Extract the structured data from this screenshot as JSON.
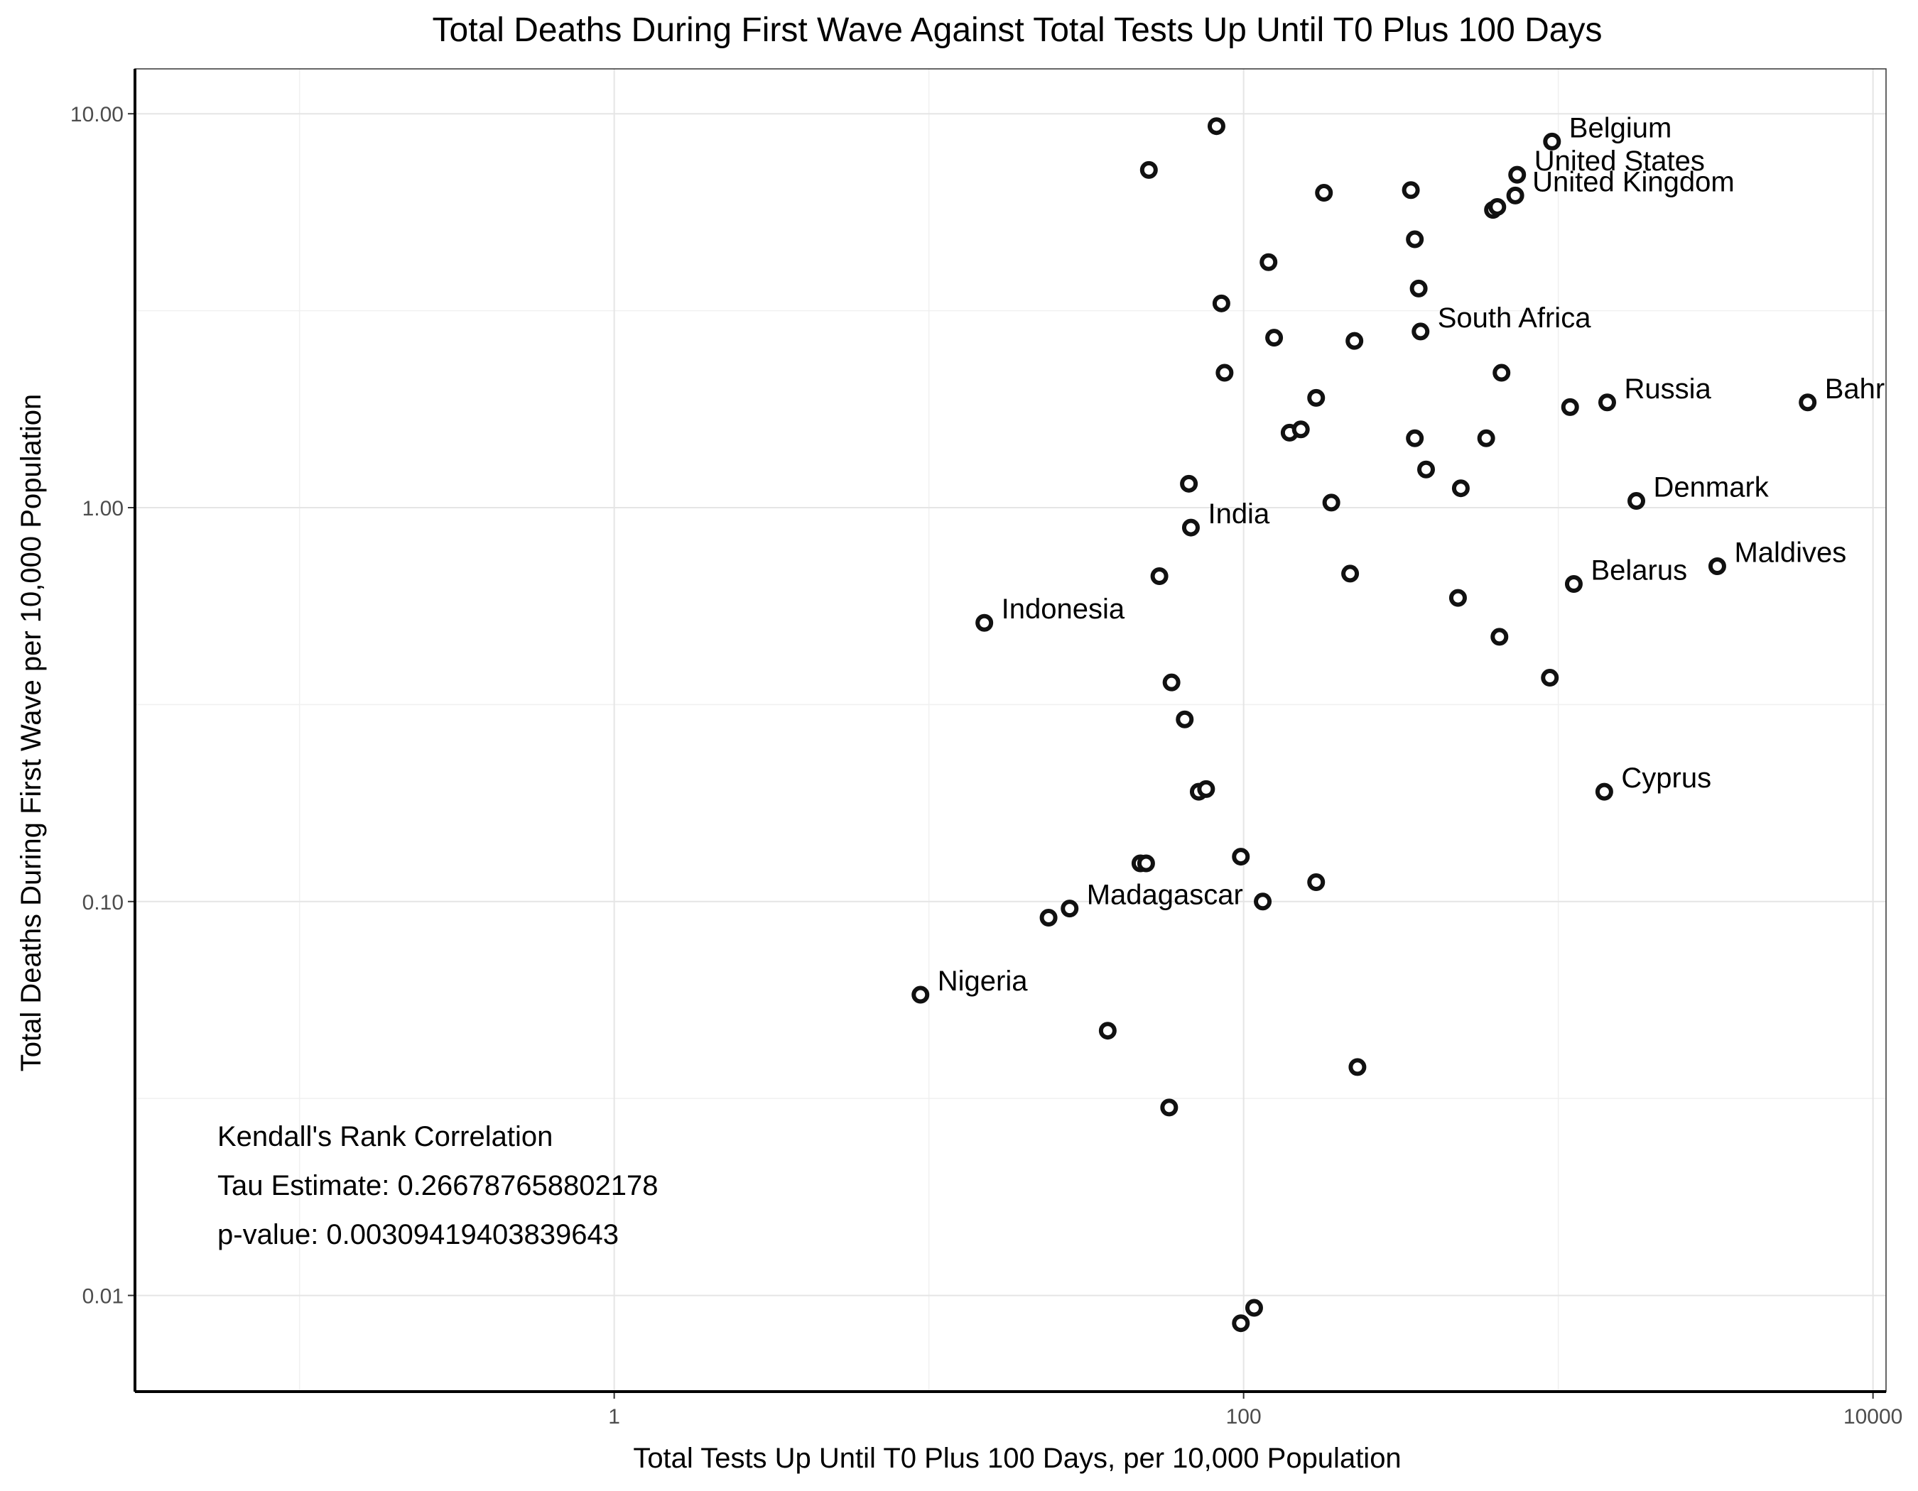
{
  "chart_data": {
    "type": "scatter",
    "title": "Total Deaths During First Wave Against Total Tests Up Until T0 Plus 100 Days",
    "xlabel": "Total Tests Up Until T0 Plus 100 Days, per 10,000 Population",
    "ylabel": "Total Deaths During First Wave per 10,000 Population",
    "x_scale": "log10",
    "y_scale": "log10",
    "xlim": [
      0.03,
      11000
    ],
    "ylim": [
      0.0057,
      13.0
    ],
    "x_ticks": [
      {
        "value": 1,
        "label": "1"
      },
      {
        "value": 100,
        "label": "100"
      },
      {
        "value": 10000,
        "label": "10000"
      }
    ],
    "y_ticks": [
      {
        "value": 0.01,
        "label": "0.01"
      },
      {
        "value": 0.1,
        "label": "0.10"
      },
      {
        "value": 1,
        "label": "1.00"
      },
      {
        "value": 10,
        "label": "10.00"
      }
    ],
    "grid": true,
    "annotation": [
      "Kendall's Rank Correlation",
      "Tau Estimate: 0.266787658802178",
      "p-value: 0.00309419403839643"
    ],
    "points": [
      {
        "x": 82,
        "y": 9.3,
        "label": ""
      },
      {
        "x": 50,
        "y": 7.2,
        "label": ""
      },
      {
        "x": 955,
        "y": 8.5,
        "label": "Belgium"
      },
      {
        "x": 740,
        "y": 7.0,
        "label": "United States"
      },
      {
        "x": 730,
        "y": 6.2,
        "label": "United Kingdom"
      },
      {
        "x": 180,
        "y": 6.3,
        "label": ""
      },
      {
        "x": 340,
        "y": 6.4,
        "label": ""
      },
      {
        "x": 620,
        "y": 5.7,
        "label": ""
      },
      {
        "x": 640,
        "y": 5.8,
        "label": ""
      },
      {
        "x": 350,
        "y": 4.8,
        "label": ""
      },
      {
        "x": 120,
        "y": 4.2,
        "label": ""
      },
      {
        "x": 85,
        "y": 3.3,
        "label": ""
      },
      {
        "x": 360,
        "y": 3.6,
        "label": ""
      },
      {
        "x": 365,
        "y": 2.8,
        "label": "South Africa"
      },
      {
        "x": 125,
        "y": 2.7,
        "label": ""
      },
      {
        "x": 225,
        "y": 2.65,
        "label": ""
      },
      {
        "x": 87,
        "y": 2.2,
        "label": ""
      },
      {
        "x": 660,
        "y": 2.2,
        "label": ""
      },
      {
        "x": 170,
        "y": 1.9,
        "label": ""
      },
      {
        "x": 1430,
        "y": 1.85,
        "label": "Russia"
      },
      {
        "x": 1090,
        "y": 1.8,
        "label": ""
      },
      {
        "x": 6200,
        "y": 1.85,
        "label": "Bahr"
      },
      {
        "x": 140,
        "y": 1.55,
        "label": ""
      },
      {
        "x": 152,
        "y": 1.58,
        "label": ""
      },
      {
        "x": 350,
        "y": 1.5,
        "label": ""
      },
      {
        "x": 590,
        "y": 1.5,
        "label": ""
      },
      {
        "x": 67,
        "y": 1.15,
        "label": ""
      },
      {
        "x": 380,
        "y": 1.25,
        "label": ""
      },
      {
        "x": 490,
        "y": 1.12,
        "label": ""
      },
      {
        "x": 190,
        "y": 1.03,
        "label": ""
      },
      {
        "x": 1770,
        "y": 1.04,
        "label": "Denmark"
      },
      {
        "x": 68,
        "y": 0.89,
        "label": "India"
      },
      {
        "x": 54,
        "y": 0.67,
        "label": ""
      },
      {
        "x": 218,
        "y": 0.68,
        "label": ""
      },
      {
        "x": 3200,
        "y": 0.71,
        "label": "Maldives"
      },
      {
        "x": 1120,
        "y": 0.64,
        "label": "Belarus"
      },
      {
        "x": 15,
        "y": 0.51,
        "label": "Indonesia"
      },
      {
        "x": 480,
        "y": 0.59,
        "label": ""
      },
      {
        "x": 650,
        "y": 0.47,
        "label": ""
      },
      {
        "x": 940,
        "y": 0.37,
        "label": ""
      },
      {
        "x": 59,
        "y": 0.36,
        "label": ""
      },
      {
        "x": 65,
        "y": 0.29,
        "label": ""
      },
      {
        "x": 72,
        "y": 0.19,
        "label": ""
      },
      {
        "x": 76,
        "y": 0.193,
        "label": ""
      },
      {
        "x": 1400,
        "y": 0.19,
        "label": "Cyprus"
      },
      {
        "x": 47,
        "y": 0.125,
        "label": ""
      },
      {
        "x": 49,
        "y": 0.125,
        "label": ""
      },
      {
        "x": 98,
        "y": 0.13,
        "label": ""
      },
      {
        "x": 170,
        "y": 0.112,
        "label": ""
      },
      {
        "x": 115,
        "y": 0.1,
        "label": ""
      },
      {
        "x": 24,
        "y": 0.091,
        "label": ""
      },
      {
        "x": 28,
        "y": 0.096,
        "label": "Madagascar"
      },
      {
        "x": 9.4,
        "y": 0.058,
        "label": "Nigeria"
      },
      {
        "x": 37,
        "y": 0.047,
        "label": ""
      },
      {
        "x": 230,
        "y": 0.038,
        "label": ""
      },
      {
        "x": 58,
        "y": 0.03,
        "label": ""
      },
      {
        "x": 98,
        "y": 0.0085,
        "label": ""
      },
      {
        "x": 108,
        "y": 0.0093,
        "label": ""
      }
    ]
  }
}
